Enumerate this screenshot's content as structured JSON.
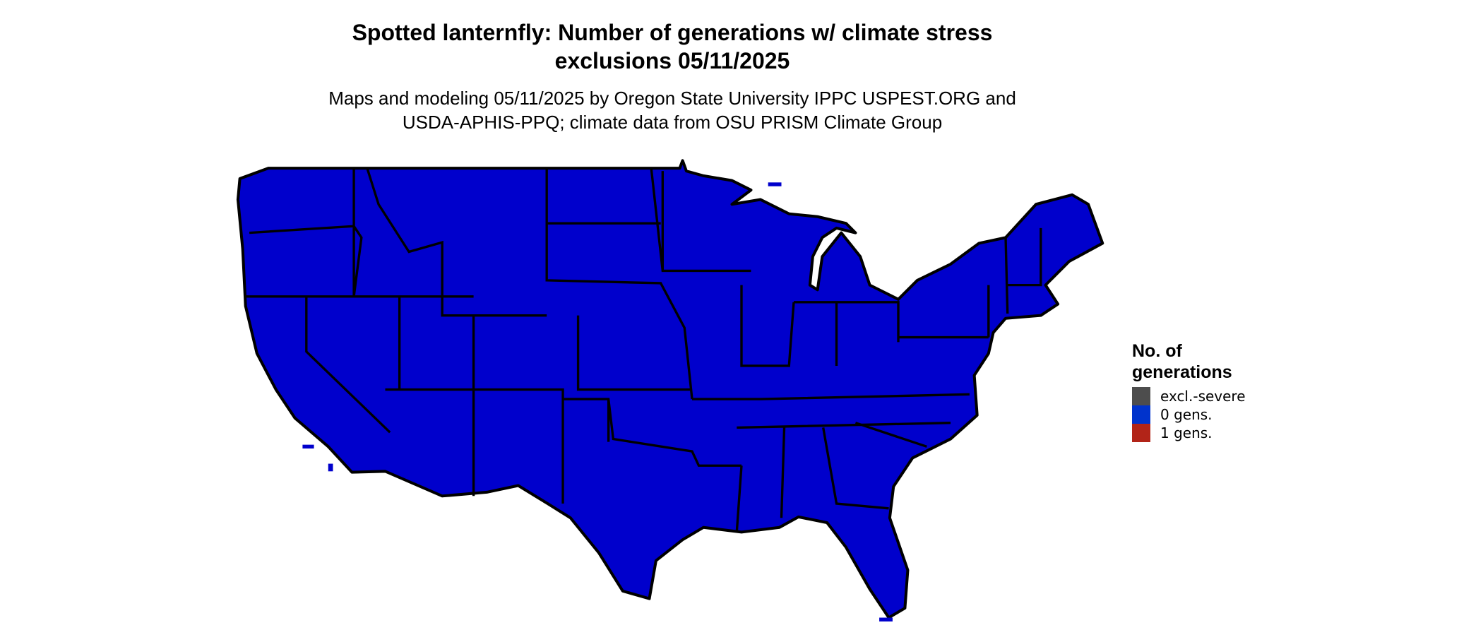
{
  "title_line1": "Spotted lanternfly: Number of generations w/ climate stress",
  "title_line2": "exclusions 05/11/2025",
  "subtitle_line1": "Maps and modeling 05/11/2025 by Oregon State University IPPC USPEST.ORG and",
  "subtitle_line2": "USDA-APHIS-PPQ; climate data from OSU PRISM Climate Group",
  "map": {
    "region": "contiguous United States",
    "fill_color": "#0000cc",
    "border_color": "#000000"
  },
  "legend": {
    "title_line1": "No. of",
    "title_line2": "generations",
    "items": [
      {
        "label": "excl.-severe",
        "color": "#4d4d4d"
      },
      {
        "label": "0 gens.",
        "color": "#0033cc"
      },
      {
        "label": "1 gens.",
        "color": "#b22418"
      }
    ]
  }
}
